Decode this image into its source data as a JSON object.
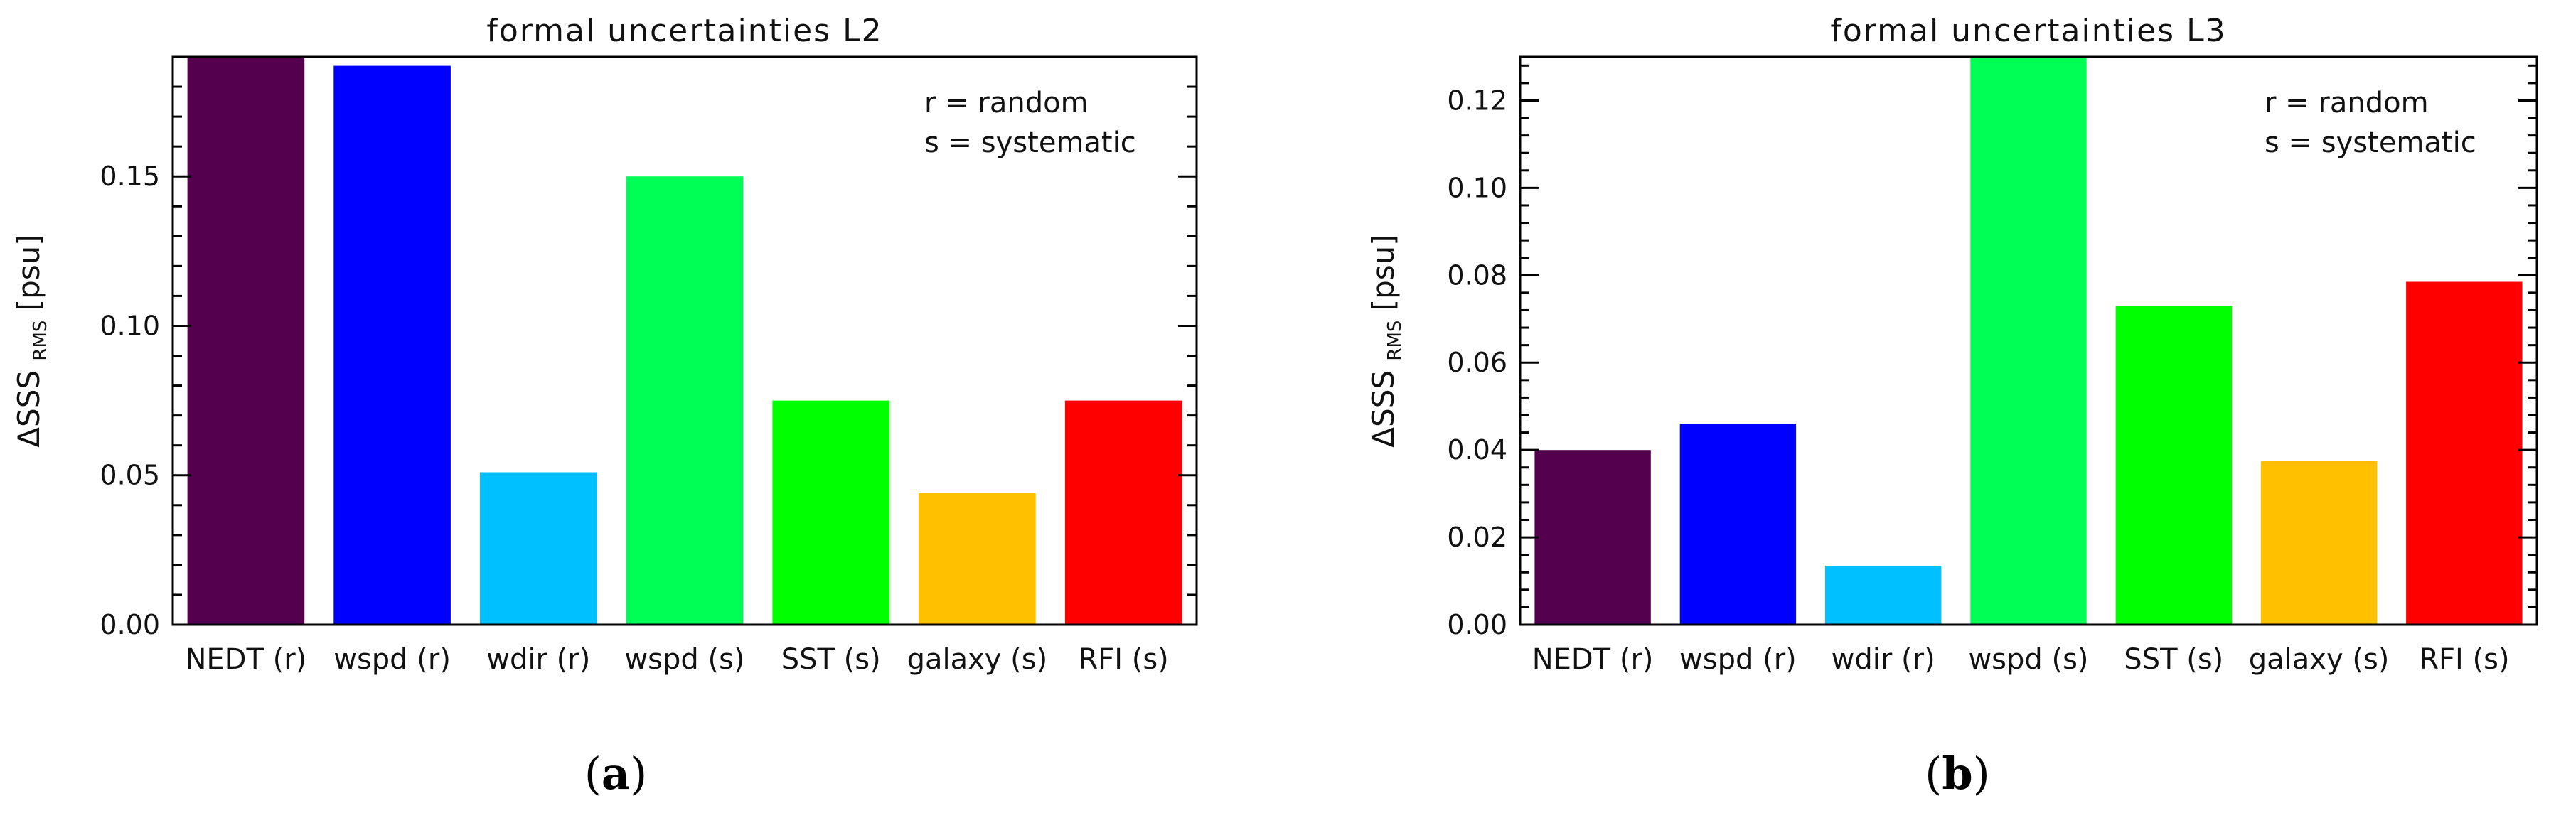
{
  "chart_data": [
    {
      "type": "bar",
      "title": "formal uncertainties L2",
      "panel_label": "a",
      "ylabel": "ΔSSS",
      "ylabel_subscript": "RMS",
      "ylabel_unit": "[psu]",
      "ylim": [
        0,
        0.19
      ],
      "yticks": [
        "0.00",
        "0.05",
        "0.10",
        "0.15"
      ],
      "ytick_values": [
        0,
        0.05,
        0.1,
        0.15
      ],
      "categories": [
        "NEDT (r)",
        "wspd (r)",
        "wdir (r)",
        "wspd (s)",
        "SST (s)",
        "galaxy (s)",
        "RFI (s)"
      ],
      "values": [
        0.19,
        0.187,
        0.051,
        0.15,
        0.075,
        0.044,
        0.075
      ],
      "colors": [
        "#55004f",
        "#0000ff",
        "#00c0ff",
        "#00ff55",
        "#00ff00",
        "#ffc000",
        "#ff0000"
      ],
      "legend": [
        "r = random",
        "s = systematic"
      ]
    },
    {
      "type": "bar",
      "title": "formal uncertainties L3",
      "panel_label": "b",
      "ylabel": "ΔSSS",
      "ylabel_subscript": "RMS",
      "ylabel_unit": "[psu]",
      "ylim": [
        0,
        0.13
      ],
      "yticks": [
        "0.00",
        "0.02",
        "0.04",
        "0.06",
        "0.08",
        "0.10",
        "0.12"
      ],
      "ytick_values": [
        0,
        0.02,
        0.04,
        0.06,
        0.08,
        0.1,
        0.12
      ],
      "categories": [
        "NEDT (r)",
        "wspd (r)",
        "wdir (r)",
        "wspd (s)",
        "SST (s)",
        "galaxy (s)",
        "RFI (s)"
      ],
      "values": [
        0.04,
        0.046,
        0.0135,
        0.13,
        0.073,
        0.0375,
        0.0785
      ],
      "colors": [
        "#55004f",
        "#0000ff",
        "#00c0ff",
        "#00ff55",
        "#00ff00",
        "#ffc000",
        "#ff0000"
      ],
      "legend": [
        "r = random",
        "s = systematic"
      ]
    }
  ]
}
